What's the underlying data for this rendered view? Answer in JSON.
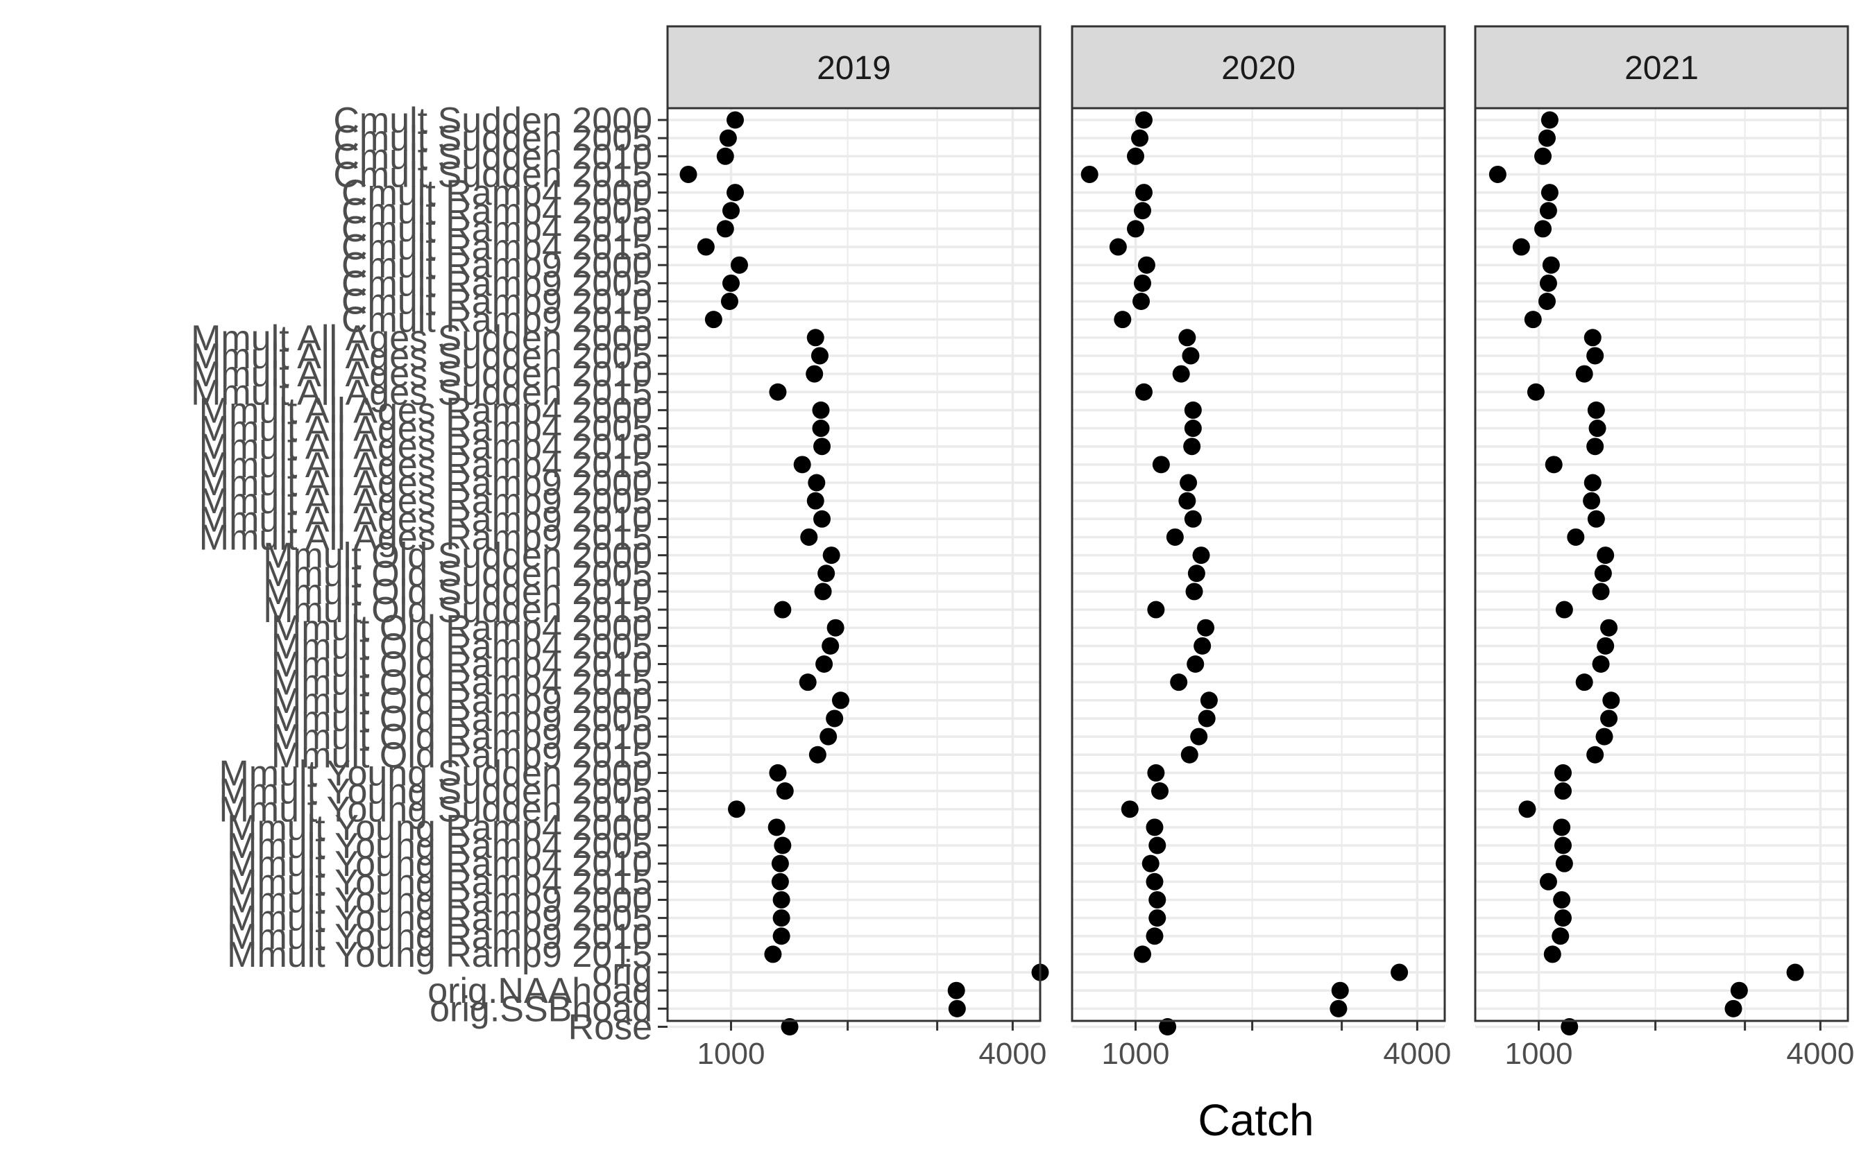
{
  "chart_data": {
    "type": "scatter",
    "xlabel": "Catch",
    "ylabel": "",
    "x_scale": "sqrt",
    "xlim": [
      600,
      4400
    ],
    "x_ticks": [
      1000,
      4000
    ],
    "x_tick_labels": [
      "1000",
      "4000"
    ],
    "x_minor_breaks": [
      2000,
      3000
    ],
    "grid": true,
    "theme": "bw",
    "colors": {
      "point": "#000000",
      "strip": "#d9d9d9",
      "grid": "#ebebeb",
      "panel_border": "#333333"
    },
    "categories": [
      "Cmult Sudden 2000",
      "Cmult Sudden 2005",
      "Cmult Sudden 2010",
      "Cmult Sudden 2015",
      "Cmult Ramp4 2000",
      "Cmult Ramp4 2005",
      "Cmult Ramp4 2010",
      "Cmult Ramp4 2015",
      "Cmult Ramp9 2000",
      "Cmult Ramp9 2005",
      "Cmult Ramp9 2010",
      "Cmult Ramp9 2015",
      "Mmult All Ages Sudden 2000",
      "Mmult All Ages Sudden 2005",
      "Mmult All Ages Sudden 2010",
      "Mmult All Ages Sudden 2015",
      "Mmult All Ages Ramp4 2000",
      "Mmult All Ages Ramp4 2005",
      "Mmult All Ages Ramp4 2010",
      "Mmult All Ages Ramp4 2015",
      "Mmult All Ages Ramp9 2000",
      "Mmult All Ages Ramp9 2005",
      "Mmult All Ages Ramp9 2010",
      "Mmult All Ages Ramp9 2015",
      "Mmult Old Sudden 2000",
      "Mmult Old Sudden 2005",
      "Mmult Old Sudden 2010",
      "Mmult Old Sudden 2015",
      "Mmult Old Ramp4 2000",
      "Mmult Old Ramp4 2005",
      "Mmult Old Ramp4 2010",
      "Mmult Old Ramp4 2015",
      "Mmult Old Ramp9 2000",
      "Mmult Old Ramp9 2005",
      "Mmult Old Ramp9 2010",
      "Mmult Old Ramp9 2015",
      "Mmult Young Sudden 2000",
      "Mmult Young Sudden 2005",
      "Mmult Young Sudden 2010",
      "Mmult Young Ramp4 2000",
      "Mmult Young Ramp4 2005",
      "Mmult Young Ramp4 2010",
      "Mmult Young Ramp4 2015",
      "Mmult Young Ramp9 2000",
      "Mmult Young Ramp9 2005",
      "Mmult Young Ramp9 2010",
      "Mmult Young Ramp9 2015",
      "orig",
      "orig.NAAhoad",
      "orig.SSBhoad",
      "Rose"
    ],
    "panels": [
      {
        "title": "2019",
        "values": [
          1030,
          980,
          960,
          720,
          1030,
          1000,
          960,
          830,
          1060,
          1000,
          990,
          880,
          1690,
          1730,
          1680,
          1360,
          1740,
          1740,
          1750,
          1570,
          1700,
          1690,
          1750,
          1630,
          1840,
          1790,
          1760,
          1400,
          1880,
          1830,
          1770,
          1620,
          1930,
          1870,
          1810,
          1710,
          1360,
          1420,
          1040,
          1350,
          1400,
          1380,
          1380,
          1390,
          1390,
          1390,
          1320,
          4400,
          3240,
          3250,
          1460
        ]
      },
      {
        "title": "2020",
        "values": [
          1060,
          1030,
          1000,
          700,
          1060,
          1050,
          1000,
          880,
          1080,
          1050,
          1040,
          910,
          1400,
          1430,
          1350,
          1060,
          1450,
          1450,
          1440,
          1190,
          1410,
          1400,
          1450,
          1300,
          1520,
          1480,
          1460,
          1150,
          1560,
          1530,
          1470,
          1330,
          1590,
          1570,
          1500,
          1420,
          1150,
          1180,
          960,
          1140,
          1160,
          1110,
          1140,
          1160,
          1160,
          1140,
          1050,
          3750,
          2980,
          2960,
          1240
        ]
      },
      {
        "title": "2021",
        "values": [
          1080,
          1060,
          1030,
          730,
          1080,
          1070,
          1030,
          880,
          1090,
          1070,
          1060,
          960,
          1420,
          1440,
          1350,
          980,
          1450,
          1460,
          1440,
          1110,
          1420,
          1410,
          1450,
          1280,
          1530,
          1510,
          1490,
          1190,
          1560,
          1530,
          1490,
          1350,
          1580,
          1560,
          1520,
          1440,
          1180,
          1180,
          920,
          1170,
          1180,
          1190,
          1070,
          1170,
          1180,
          1160,
          1100,
          3650,
          2930,
          2860,
          1230
        ]
      }
    ]
  }
}
